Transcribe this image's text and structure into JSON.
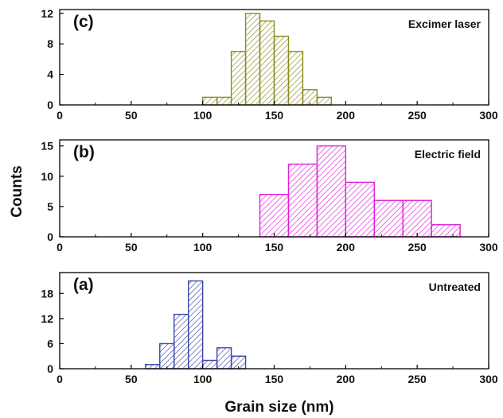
{
  "figure": {
    "ylabel": "Counts",
    "xlabel": "Grain size (nm)"
  },
  "chart_data": [
    {
      "type": "bar",
      "panel_label": "(c)",
      "annotation": "Excimer laser",
      "color": "#8a8a1e",
      "xlim": [
        0,
        300
      ],
      "ylim": [
        0,
        12.5
      ],
      "xticks": [
        "0",
        "50",
        "100",
        "150",
        "200",
        "250",
        "300"
      ],
      "yticks": [
        "0",
        "4",
        "8",
        "12"
      ],
      "bin_edges": [
        100,
        110,
        120,
        130,
        140,
        150,
        160,
        170,
        180,
        190
      ],
      "values": [
        1,
        1,
        7,
        12,
        11,
        9,
        7,
        2,
        1
      ]
    },
    {
      "type": "bar",
      "panel_label": "(b)",
      "annotation": "Electric field",
      "color": "#e020d8",
      "xlim": [
        0,
        300
      ],
      "ylim": [
        0,
        16
      ],
      "xticks": [
        "0",
        "50",
        "100",
        "150",
        "200",
        "250",
        "300"
      ],
      "yticks": [
        "0",
        "5",
        "10",
        "15"
      ],
      "bin_edges": [
        140,
        160,
        180,
        200,
        220,
        240,
        260,
        280
      ],
      "values": [
        7,
        12,
        15,
        9,
        6,
        6,
        2
      ]
    },
    {
      "type": "bar",
      "panel_label": "(a)",
      "annotation": "Untreated",
      "color": "#3a46a8",
      "xlim": [
        0,
        300
      ],
      "ylim": [
        0,
        23
      ],
      "xticks": [
        "0",
        "50",
        "100",
        "150",
        "200",
        "250",
        "300"
      ],
      "yticks": [
        "0",
        "6",
        "12",
        "18"
      ],
      "bin_edges": [
        60,
        70,
        80,
        90,
        100,
        110,
        120,
        130
      ],
      "values": [
        1,
        6,
        13,
        21,
        2,
        5,
        3
      ]
    }
  ]
}
